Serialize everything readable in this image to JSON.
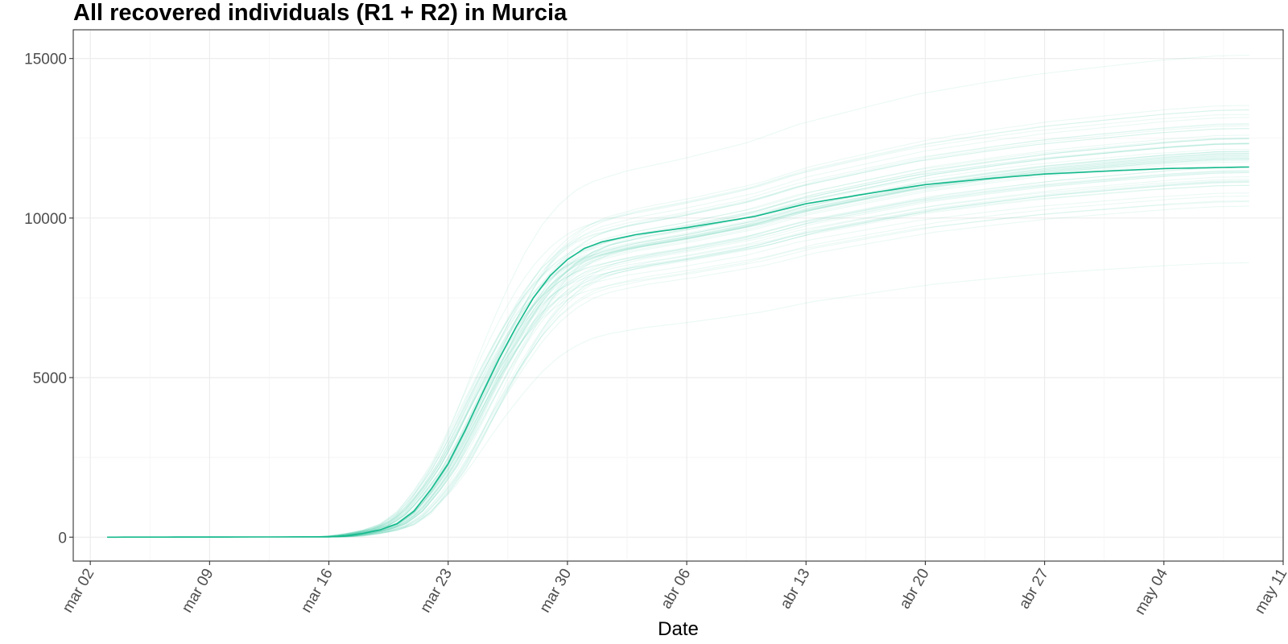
{
  "chart_data": {
    "type": "line",
    "title": "All recovered individuals (R1 + R2) in  Murcia",
    "xlabel": "Date",
    "ylabel": "",
    "x_range": [
      "2020-03-01",
      "2020-05-11"
    ],
    "ylim": [
      -750,
      15900
    ],
    "x_ticks": [
      {
        "date": "2020-03-02",
        "label": "mar 02"
      },
      {
        "date": "2020-03-09",
        "label": "mar 09"
      },
      {
        "date": "2020-03-16",
        "label": "mar 16"
      },
      {
        "date": "2020-03-23",
        "label": "mar 23"
      },
      {
        "date": "2020-03-30",
        "label": "mar 30"
      },
      {
        "date": "2020-04-06",
        "label": "abr 06"
      },
      {
        "date": "2020-04-13",
        "label": "abr 13"
      },
      {
        "date": "2020-04-20",
        "label": "abr 20"
      },
      {
        "date": "2020-04-27",
        "label": "abr 27"
      },
      {
        "date": "2020-05-04",
        "label": "may 04"
      },
      {
        "date": "2020-05-11",
        "label": "may 11"
      }
    ],
    "y_ticks": [
      0,
      5000,
      10000,
      15000
    ],
    "grid": true,
    "legend": "none",
    "colors": {
      "line": "#14b98c",
      "ensemble": "#14b98c",
      "panel_border": "#333333"
    },
    "series": [
      {
        "x": [
          "2020-03-03",
          "2020-03-16",
          "2020-03-17",
          "2020-03-18",
          "2020-03-19",
          "2020-03-20",
          "2020-03-21",
          "2020-03-22",
          "2020-03-23",
          "2020-03-24",
          "2020-03-25",
          "2020-03-26",
          "2020-03-27",
          "2020-03-28",
          "2020-03-29",
          "2020-03-30",
          "2020-03-31",
          "2020-04-01",
          "2020-04-03",
          "2020-04-06",
          "2020-04-10",
          "2020-04-13",
          "2020-04-17",
          "2020-04-20",
          "2020-04-24",
          "2020-04-27",
          "2020-05-01",
          "2020-05-04",
          "2020-05-09"
        ],
        "values": [
          0,
          10,
          40,
          120,
          230,
          420,
          820,
          1500,
          2300,
          3350,
          4500,
          5600,
          6600,
          7500,
          8200,
          8700,
          9050,
          9250,
          9480,
          9700,
          10050,
          10450,
          10800,
          11050,
          11250,
          11380,
          11480,
          11550,
          11600
        ]
      }
    ],
    "ensemble": {
      "count": 60,
      "final_range": [
        8600,
        15100
      ],
      "opacity": 0.09
    }
  }
}
